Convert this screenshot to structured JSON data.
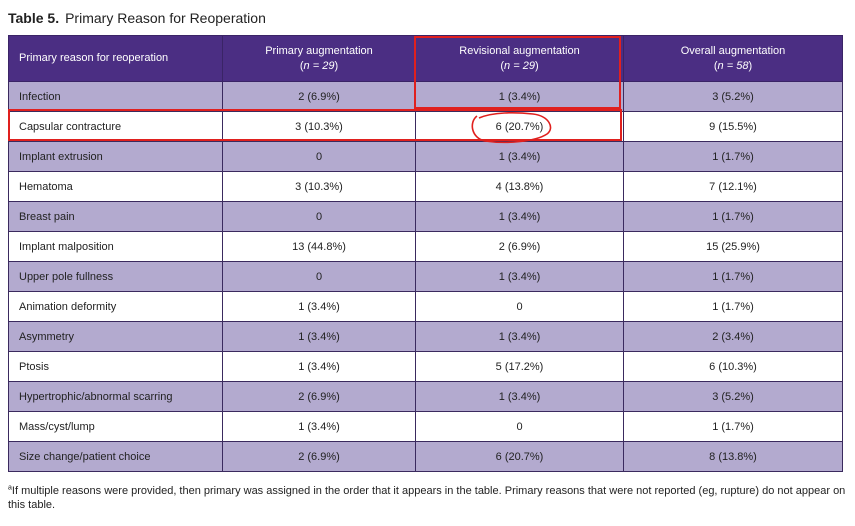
{
  "title": {
    "label": "Table 5.",
    "text": "Primary Reason for Reoperation"
  },
  "headers": [
    {
      "label": "Primary reason for reoperation",
      "n": ""
    },
    {
      "label": "Primary augmentation",
      "n": "n = 29"
    },
    {
      "label": "Revisional augmentation",
      "n": "n = 29"
    },
    {
      "label": "Overall augmentation",
      "n": "n = 58"
    }
  ],
  "rows": [
    {
      "reason": "Infection",
      "primary": "2 (6.9%)",
      "revisional": "1 (3.4%)",
      "overall": "3 (5.2%)"
    },
    {
      "reason": "Capsular contracture",
      "primary": "3 (10.3%)",
      "revisional": "6 (20.7%)",
      "overall": "9 (15.5%)"
    },
    {
      "reason": "Implant extrusion",
      "primary": "0",
      "revisional": "1 (3.4%)",
      "overall": "1 (1.7%)"
    },
    {
      "reason": "Hematoma",
      "primary": "3 (10.3%)",
      "revisional": "4 (13.8%)",
      "overall": "7 (12.1%)"
    },
    {
      "reason": "Breast pain",
      "primary": "0",
      "revisional": "1 (3.4%)",
      "overall": "1 (1.7%)"
    },
    {
      "reason": "Implant malposition",
      "primary": "13 (44.8%)",
      "revisional": "2 (6.9%)",
      "overall": "15 (25.9%)"
    },
    {
      "reason": "Upper pole fullness",
      "primary": "0",
      "revisional": "1 (3.4%)",
      "overall": "1 (1.7%)"
    },
    {
      "reason": "Animation deformity",
      "primary": "1 (3.4%)",
      "revisional": "0",
      "overall": "1 (1.7%)"
    },
    {
      "reason": "Asymmetry",
      "primary": "1 (3.4%)",
      "revisional": "1 (3.4%)",
      "overall": "2 (3.4%)"
    },
    {
      "reason": "Ptosis",
      "primary": "1 (3.4%)",
      "revisional": "5 (17.2%)",
      "overall": "6 (10.3%)"
    },
    {
      "reason": "Hypertrophic/abnormal scarring",
      "primary": "2 (6.9%)",
      "revisional": "1 (3.4%)",
      "overall": "3 (5.2%)"
    },
    {
      "reason": "Mass/cyst/lump",
      "primary": "1 (3.4%)",
      "revisional": "0",
      "overall": "1 (1.7%)"
    },
    {
      "reason": "Size change/patient choice",
      "primary": "2 (6.9%)",
      "revisional": "6 (20.7%)",
      "overall": "8 (13.8%)"
    }
  ],
  "footnote": {
    "marker": "a",
    "text": "If multiple reasons were provided, then primary was assigned in the order that it appears in the table. Primary reasons that were not reported (eg, rupture) do not appear on this table."
  },
  "colors": {
    "header": "#4b2e83",
    "stripe": "#b3aacf",
    "annotation": "#e0201e"
  }
}
